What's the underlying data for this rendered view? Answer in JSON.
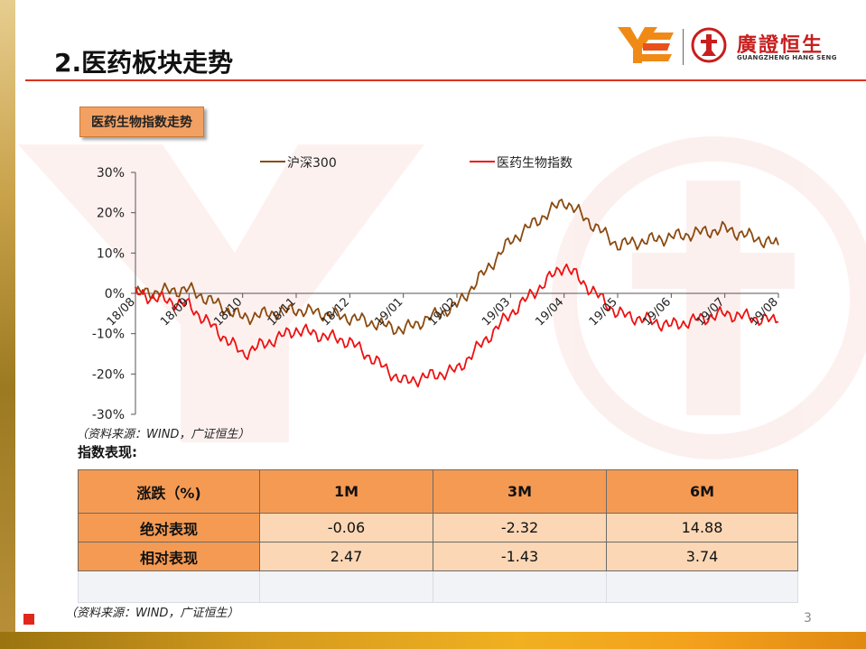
{
  "header": {
    "title": "2.医药板块走势",
    "logo_cn": "廣證恒生",
    "logo_en": "GUANGZHENG HANG SENG"
  },
  "chart_section": {
    "label": "医药生物指数走势",
    "source": "（资料来源：WIND，广证恒生）"
  },
  "chart_data": {
    "type": "line",
    "title": "医药生物指数走势",
    "xlabel": "",
    "ylabel": "",
    "ylim": [
      -30,
      30
    ],
    "yticks": [
      "-30%",
      "-20%",
      "-10%",
      "0%",
      "10%",
      "20%",
      "30%"
    ],
    "x": [
      "18/08",
      "18/09",
      "18/10",
      "18/11",
      "18/12",
      "19/01",
      "19/02",
      "19/03",
      "19/04",
      "19/05",
      "19/06",
      "19/07",
      "19/08"
    ],
    "legend_position": "top",
    "series": [
      {
        "name": "沪深300",
        "color": "#8b4a0f",
        "values": [
          0,
          1,
          -6,
          -4,
          -6,
          -9,
          -3,
          13,
          23,
          12,
          14,
          16,
          12
        ]
      },
      {
        "name": "医药生物指数",
        "color": "#ee1111",
        "values": [
          0,
          -3,
          -15,
          -9,
          -12,
          -22,
          -19,
          -5,
          7,
          -5,
          -8,
          -5,
          -7
        ]
      }
    ]
  },
  "performance": {
    "title": "指数表现:",
    "headers": [
      "涨跌（%)",
      "1M",
      "3M",
      "6M"
    ],
    "rows": [
      {
        "label": "绝对表现",
        "values": [
          "-0.06",
          "-2.32",
          "14.88"
        ]
      },
      {
        "label": "相对表现",
        "values": [
          "2.47",
          "-1.43",
          "3.74"
        ]
      }
    ],
    "source": "（资料来源：WIND，广证恒生）"
  },
  "page_number": "3",
  "colors": {
    "accent_red": "#d8331c",
    "table_header": "#f59a52",
    "table_cell": "#fbd7b5"
  }
}
